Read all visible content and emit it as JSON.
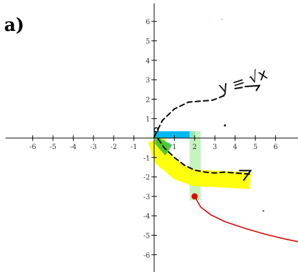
{
  "part_label": "a)",
  "colors": {
    "highlight_blue": "#00b8f0",
    "highlight_yellow": "#ffff00",
    "highlight_green": "#b8f0b0",
    "overlap_green": "#2fbf2f",
    "curve": "#e00000",
    "ink": "#000000"
  },
  "chart_data": {
    "type": "line",
    "title": "",
    "xlabel": "",
    "ylabel": "",
    "xlim": [
      -7,
      7
    ],
    "ylim": [
      -7,
      7
    ],
    "x_ticks": [
      "-6",
      "-5",
      "-4",
      "-3",
      "-2",
      "-1",
      "1",
      "2",
      "3",
      "4",
      "5",
      "6"
    ],
    "y_ticks": [
      "6",
      "5",
      "4",
      "3",
      "2",
      "1",
      "-1",
      "-2",
      "-3",
      "-4",
      "-5",
      "-6"
    ],
    "grid": false,
    "annotations": [
      {
        "text": "y = √x",
        "kind": "handwritten",
        "x": 3.3,
        "y": 2.3
      }
    ],
    "series": [
      {
        "style": "solid",
        "x": [
          2,
          2.3,
          2.8,
          3.5,
          4.5,
          5.5,
          6.5,
          7.2
        ],
        "y": [
          -3,
          -3.55,
          -3.95,
          -4.3,
          -4.65,
          -4.95,
          -5.2,
          -5.35
        ]
      },
      {
        "style": "dashed",
        "x": [
          0,
          0.4,
          1,
          1.7,
          2.3,
          2.9,
          3.5
        ],
        "y": [
          0.05,
          0.9,
          1.5,
          1.85,
          1.9,
          1.95,
          2.2
        ]
      },
      {
        "style": "dashed",
        "x": [
          0.2,
          0.5,
          1,
          1.5,
          2,
          2.5,
          3,
          3.5,
          4,
          4.7
        ],
        "y": [
          -0.05,
          -0.5,
          -1.0,
          -1.4,
          -1.65,
          -1.75,
          -1.8,
          -1.75,
          -1.8,
          -1.85
        ]
      }
    ],
    "points": [
      {
        "x": 2,
        "y": -3,
        "filled": true
      },
      {
        "x": 0,
        "y": 0,
        "filled": false
      }
    ],
    "highlights": [
      {
        "shape": "rect",
        "x": [
          0,
          2
        ],
        "y": [
          0,
          0.35
        ]
      },
      {
        "shape": "rect",
        "x": [
          1.75,
          2.3
        ],
        "y": [
          -3.2,
          0.35
        ]
      },
      {
        "shape": "stroke",
        "x": [
          0.1,
          0.4,
          1.2,
          2,
          3,
          4,
          4.75
        ],
        "y": [
          -0.1,
          -1.05,
          -1.75,
          -2.05,
          -2.1,
          -2.15,
          -2.2
        ]
      }
    ]
  }
}
